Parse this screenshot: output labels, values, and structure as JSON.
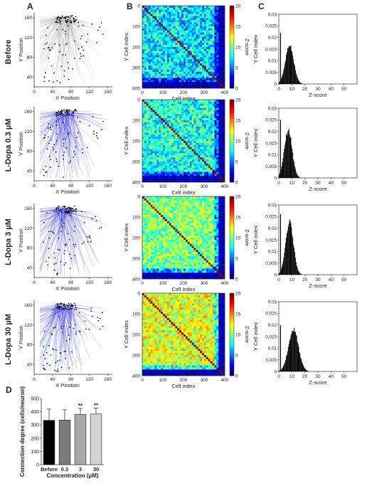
{
  "panel_letters": [
    "A",
    "B",
    "C",
    "D"
  ],
  "row_labels": [
    "Before",
    "L-Dopa 0.3 µM",
    "L-Dopa 3 µM",
    "L-Dopa 30 µM"
  ],
  "colors": {
    "network_before": "#9a9a9a",
    "network_ldopa": "#3a3ae0",
    "hist_fill": "#000000",
    "bar_before": "#000000",
    "bar_0_3": "#7a7a7a",
    "bar_3": "#a8a8a8",
    "bar_30": "#d2d2d2"
  },
  "chart_data": [
    {
      "panel": "A",
      "type": "scatter",
      "description": "network connectivity maps of cell positions",
      "xlabel": "X Position",
      "ylabel": "Y Position",
      "xticks": [
        0,
        40,
        80,
        120,
        160
      ],
      "yticks": [
        40,
        80,
        120,
        160
      ],
      "xlim": [
        0,
        170
      ],
      "ylim": [
        20,
        170
      ],
      "rows": [
        "Before",
        "L-Dopa 0.3 µM",
        "L-Dopa 3 µM",
        "L-Dopa 30 µM"
      ]
    },
    {
      "panel": "B",
      "type": "heatmap",
      "xlabel": "Cell index",
      "ylabel": "Y Cell index",
      "xticks": [
        0,
        100,
        200,
        300,
        400
      ],
      "yticks": [
        0,
        100,
        200,
        300,
        400
      ],
      "colorbar_label": "Z-score",
      "colorbar_ticks": [
        0,
        5,
        10,
        15,
        20
      ],
      "colorbar_range": [
        0,
        20
      ],
      "mean_z": [
        7,
        8,
        10,
        12
      ]
    },
    {
      "panel": "C",
      "type": "bar",
      "description": "histograms of Z-score",
      "xlabel": "Z-score",
      "ylabel": "Y Cell index",
      "xticks": [
        0,
        10,
        20,
        30,
        40,
        50
      ],
      "xlim": [
        0,
        60
      ],
      "yticks": [
        "0",
        "0.005",
        "0.01",
        "0.015",
        "0.02",
        "0.025",
        "0.03"
      ],
      "ylim": [
        0,
        0.03
      ],
      "peaks": [
        {
          "center": 8,
          "sd": 3.2,
          "height": 0.0165,
          "spike": 0.022
        },
        {
          "center": 7,
          "sd": 3.0,
          "height": 0.0205,
          "spike": 0.025
        },
        {
          "center": 8,
          "sd": 3.0,
          "height": 0.0225,
          "spike": 0.026
        },
        {
          "center": 11,
          "sd": 3.8,
          "height": 0.018,
          "spike": 0.02
        }
      ]
    },
    {
      "panel": "D",
      "type": "bar",
      "categories": [
        "Before",
        "0.3",
        "3",
        "30"
      ],
      "values": [
        335,
        337,
        380,
        383
      ],
      "errors": [
        85,
        78,
        45,
        45
      ],
      "significance": [
        "",
        "",
        "**",
        "**"
      ],
      "xlabel": "Concentration (µM)",
      "ylabel": "Connection degree (cells/neuron)",
      "yticks": [
        0,
        100,
        200,
        300,
        400,
        500
      ],
      "ylim": [
        0,
        500
      ]
    }
  ]
}
